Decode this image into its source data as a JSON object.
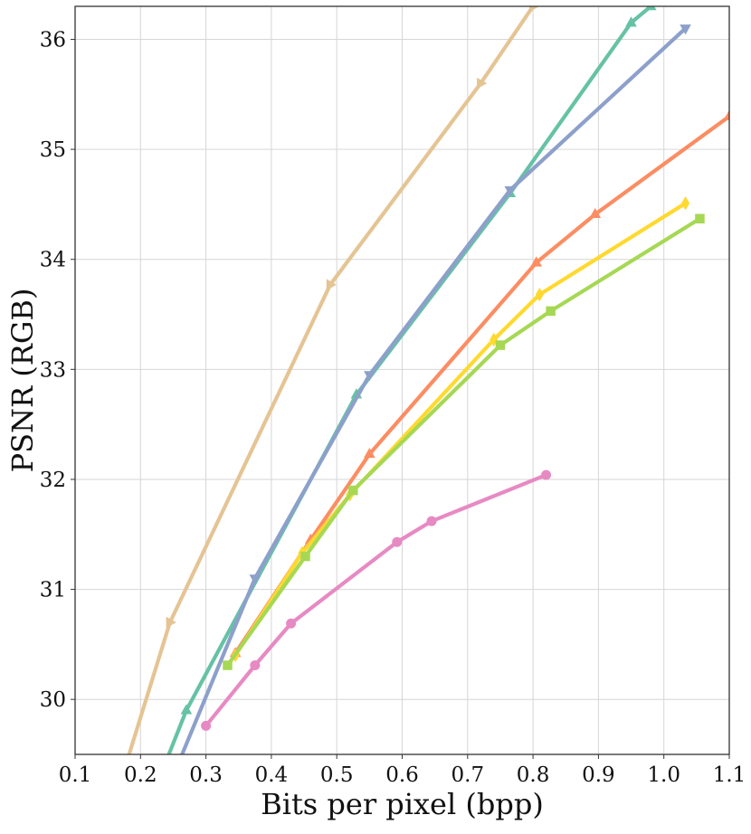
{
  "chart_data": {
    "type": "line",
    "xlabel": "Bits per pixel (bpp)",
    "ylabel": "PSNR (RGB)",
    "xlim": [
      0.1,
      1.1
    ],
    "ylim": [
      29.5,
      36.3
    ],
    "x_ticks": [
      "0.1",
      "0.2",
      "0.3",
      "0.4",
      "0.5",
      "0.6",
      "0.7",
      "0.8",
      "0.9",
      "1.0",
      "1.1"
    ],
    "y_ticks": [
      "30",
      "31",
      "32",
      "33",
      "34",
      "35",
      "36"
    ],
    "grid": true,
    "legend": false,
    "series": [
      {
        "color": "#e5c494",
        "marker": "triangle-right",
        "points": [
          [
            0.18,
            29.45
          ],
          [
            0.245,
            30.7
          ],
          [
            0.49,
            33.77
          ],
          [
            0.72,
            35.6
          ],
          [
            0.8,
            36.3
          ]
        ]
      },
      {
        "color": "#66c2a5",
        "marker": "triangle-up",
        "points": [
          [
            0.24,
            29.45
          ],
          [
            0.27,
            29.9
          ],
          [
            0.53,
            32.77
          ],
          [
            0.765,
            34.6
          ],
          [
            0.95,
            36.15
          ],
          [
            0.98,
            36.3
          ]
        ]
      },
      {
        "color": "#8da0cb",
        "marker": "triangle-down",
        "points": [
          [
            0.26,
            29.45
          ],
          [
            0.375,
            31.1
          ],
          [
            0.55,
            32.95
          ],
          [
            0.765,
            34.63
          ],
          [
            1.033,
            36.1
          ]
        ]
      },
      {
        "color": "#fc8d62",
        "marker": "triangle-up",
        "points": [
          [
            0.345,
            30.42
          ],
          [
            0.46,
            31.45
          ],
          [
            0.55,
            32.23
          ],
          [
            0.805,
            33.97
          ],
          [
            0.895,
            34.41
          ],
          [
            1.1,
            35.3
          ]
        ]
      },
      {
        "color": "#ffd92f",
        "marker": "diamond",
        "points": [
          [
            0.345,
            30.4
          ],
          [
            0.447,
            31.33
          ],
          [
            0.52,
            31.86
          ],
          [
            0.74,
            33.27
          ],
          [
            0.81,
            33.68
          ],
          [
            1.033,
            34.51
          ]
        ]
      },
      {
        "color": "#a6d854",
        "marker": "square",
        "points": [
          [
            0.333,
            30.31
          ],
          [
            0.452,
            31.3
          ],
          [
            0.525,
            31.9
          ],
          [
            0.75,
            33.22
          ],
          [
            0.827,
            33.53
          ],
          [
            1.055,
            34.37
          ]
        ]
      },
      {
        "color": "#e78ac3",
        "marker": "circle",
        "points": [
          [
            0.3,
            29.76
          ],
          [
            0.375,
            30.31
          ],
          [
            0.43,
            30.69
          ],
          [
            0.592,
            31.43
          ],
          [
            0.645,
            31.62
          ],
          [
            0.82,
            32.04
          ]
        ]
      }
    ]
  }
}
